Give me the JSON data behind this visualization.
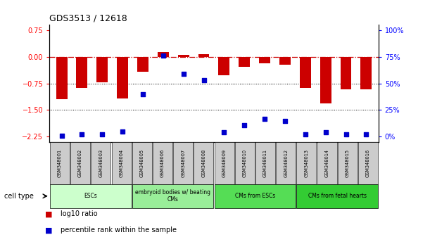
{
  "title": "GDS3513 / 12618",
  "samples": [
    "GSM348001",
    "GSM348002",
    "GSM348003",
    "GSM348004",
    "GSM348005",
    "GSM348006",
    "GSM348007",
    "GSM348008",
    "GSM348009",
    "GSM348010",
    "GSM348011",
    "GSM348012",
    "GSM348013",
    "GSM348014",
    "GSM348015",
    "GSM348016"
  ],
  "log10_ratio": [
    -1.2,
    -0.88,
    -0.72,
    -1.18,
    -0.42,
    0.13,
    0.05,
    0.07,
    -0.52,
    -0.28,
    -0.18,
    -0.22,
    -0.88,
    -1.32,
    -0.92,
    -0.92
  ],
  "percentile_rank": [
    1,
    2,
    2,
    5,
    40,
    76,
    59,
    53,
    4,
    11,
    17,
    15,
    2,
    4,
    2,
    2
  ],
  "cell_type_groups": [
    {
      "label": "ESCs",
      "start": 0,
      "end": 3,
      "color": "#ccffcc"
    },
    {
      "label": "embryoid bodies w/ beating\nCMs",
      "start": 4,
      "end": 7,
      "color": "#99ee99"
    },
    {
      "label": "CMs from ESCs",
      "start": 8,
      "end": 11,
      "color": "#55dd55"
    },
    {
      "label": "CMs from fetal hearts",
      "start": 12,
      "end": 15,
      "color": "#33cc33"
    }
  ],
  "bar_color": "#cc0000",
  "dot_color": "#0000cc",
  "ylim_left": [
    -2.4,
    0.9
  ],
  "yticks_left": [
    0.75,
    0.0,
    -0.75,
    -1.5,
    -2.25
  ],
  "yticks_right_vals": [
    100,
    75,
    50,
    25,
    0
  ],
  "hline_y": 0.0,
  "dotted_line1": -0.75,
  "dotted_line2": -1.5,
  "bar_width": 0.55
}
